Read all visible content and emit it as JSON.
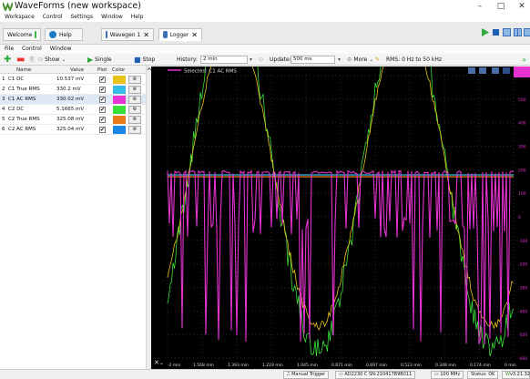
{
  "window": {
    "title": "WaveForms  (new workspace)",
    "min_glyph": "–",
    "max_glyph": "□",
    "close_glyph": "✕"
  },
  "menu": [
    "Workspace",
    "Control",
    "Settings",
    "Window",
    "Help"
  ],
  "tabs": [
    {
      "label": "Welcome",
      "icon": "home-icon",
      "color": "#39b54a"
    },
    {
      "label": "Help",
      "icon": "help-icon",
      "color": "#1b7cc4"
    },
    {
      "label": "Wavegen 1",
      "icon": "wavegen-icon",
      "color": "#3b6fb6"
    },
    {
      "label": "Logger",
      "icon": "logger-icon",
      "color": "#3b6fb6"
    }
  ],
  "submenu": [
    "File",
    "Control",
    "Window"
  ],
  "toolbar": {
    "show_label": "Show",
    "single_label": "Single",
    "stop_label": "Stop",
    "history_label": "History:",
    "history_value": "2 min",
    "update_label": "Update:",
    "update_value": "500 ms",
    "more_label": "More",
    "rms_label": "RMS: 0 Hz to 50 kHz"
  },
  "channels": {
    "headers": {
      "name": "Name",
      "value": "Value",
      "plot": "Plot",
      "color": "Color"
    },
    "rows": [
      {
        "index": "1",
        "name": "C1 DC",
        "value": "10.537 mV",
        "plot": "✔",
        "color": "#e8c31a"
      },
      {
        "index": "2",
        "name": "C1 True RMS",
        "value": "330.2 mV",
        "plot": "✔",
        "color": "#33bde6"
      },
      {
        "index": "3",
        "name": "C1 AC RMS",
        "value": "330.02 mV",
        "plot": "✔",
        "color": "#e633d2"
      },
      {
        "index": "4",
        "name": "C2 DC",
        "value": "5.1665 mV",
        "plot": "✔",
        "color": "#39e03c"
      },
      {
        "index": "5",
        "name": "C2 True RMS",
        "value": "325.08 mV",
        "plot": "✔",
        "color": "#ea7a1a"
      },
      {
        "index": "6",
        "name": "C2 AC RMS",
        "value": "325.04 mV",
        "plot": "✔",
        "color": "#1a86e6"
      }
    ]
  },
  "plot": {
    "selected_label": "Selected: C1 AC RMS",
    "x_unit": "min",
    "x_ticks": [
      "-2 min",
      "1.568 min",
      "1.393 min",
      "1.219 min",
      "1.045 min",
      "0.871 min",
      "0.697 min",
      "0.523 min",
      "0.348 min",
      "0.174 min",
      "0 min"
    ],
    "y_ticks": [
      "600",
      "500",
      "400",
      "300",
      "200",
      "100",
      "0",
      "-100",
      "-200",
      "-300",
      "-400",
      "-500",
      "-600"
    ],
    "colors": {
      "c1_dc": "#e8c31a",
      "c2_dc": "#39e03c",
      "c1_ac_rms": "#e633d2",
      "c1_true_rms": "#33bde6",
      "c2_true_rms": "#ea7a1a",
      "c2_ac_rms": "#1a86e6"
    }
  },
  "status": {
    "trigger": "Manual Trigger",
    "device": "AD2230 C SN:210417B9B011",
    "freq": "100 MHz",
    "status_text": "Status: OK",
    "version": "v3.21.32"
  }
}
